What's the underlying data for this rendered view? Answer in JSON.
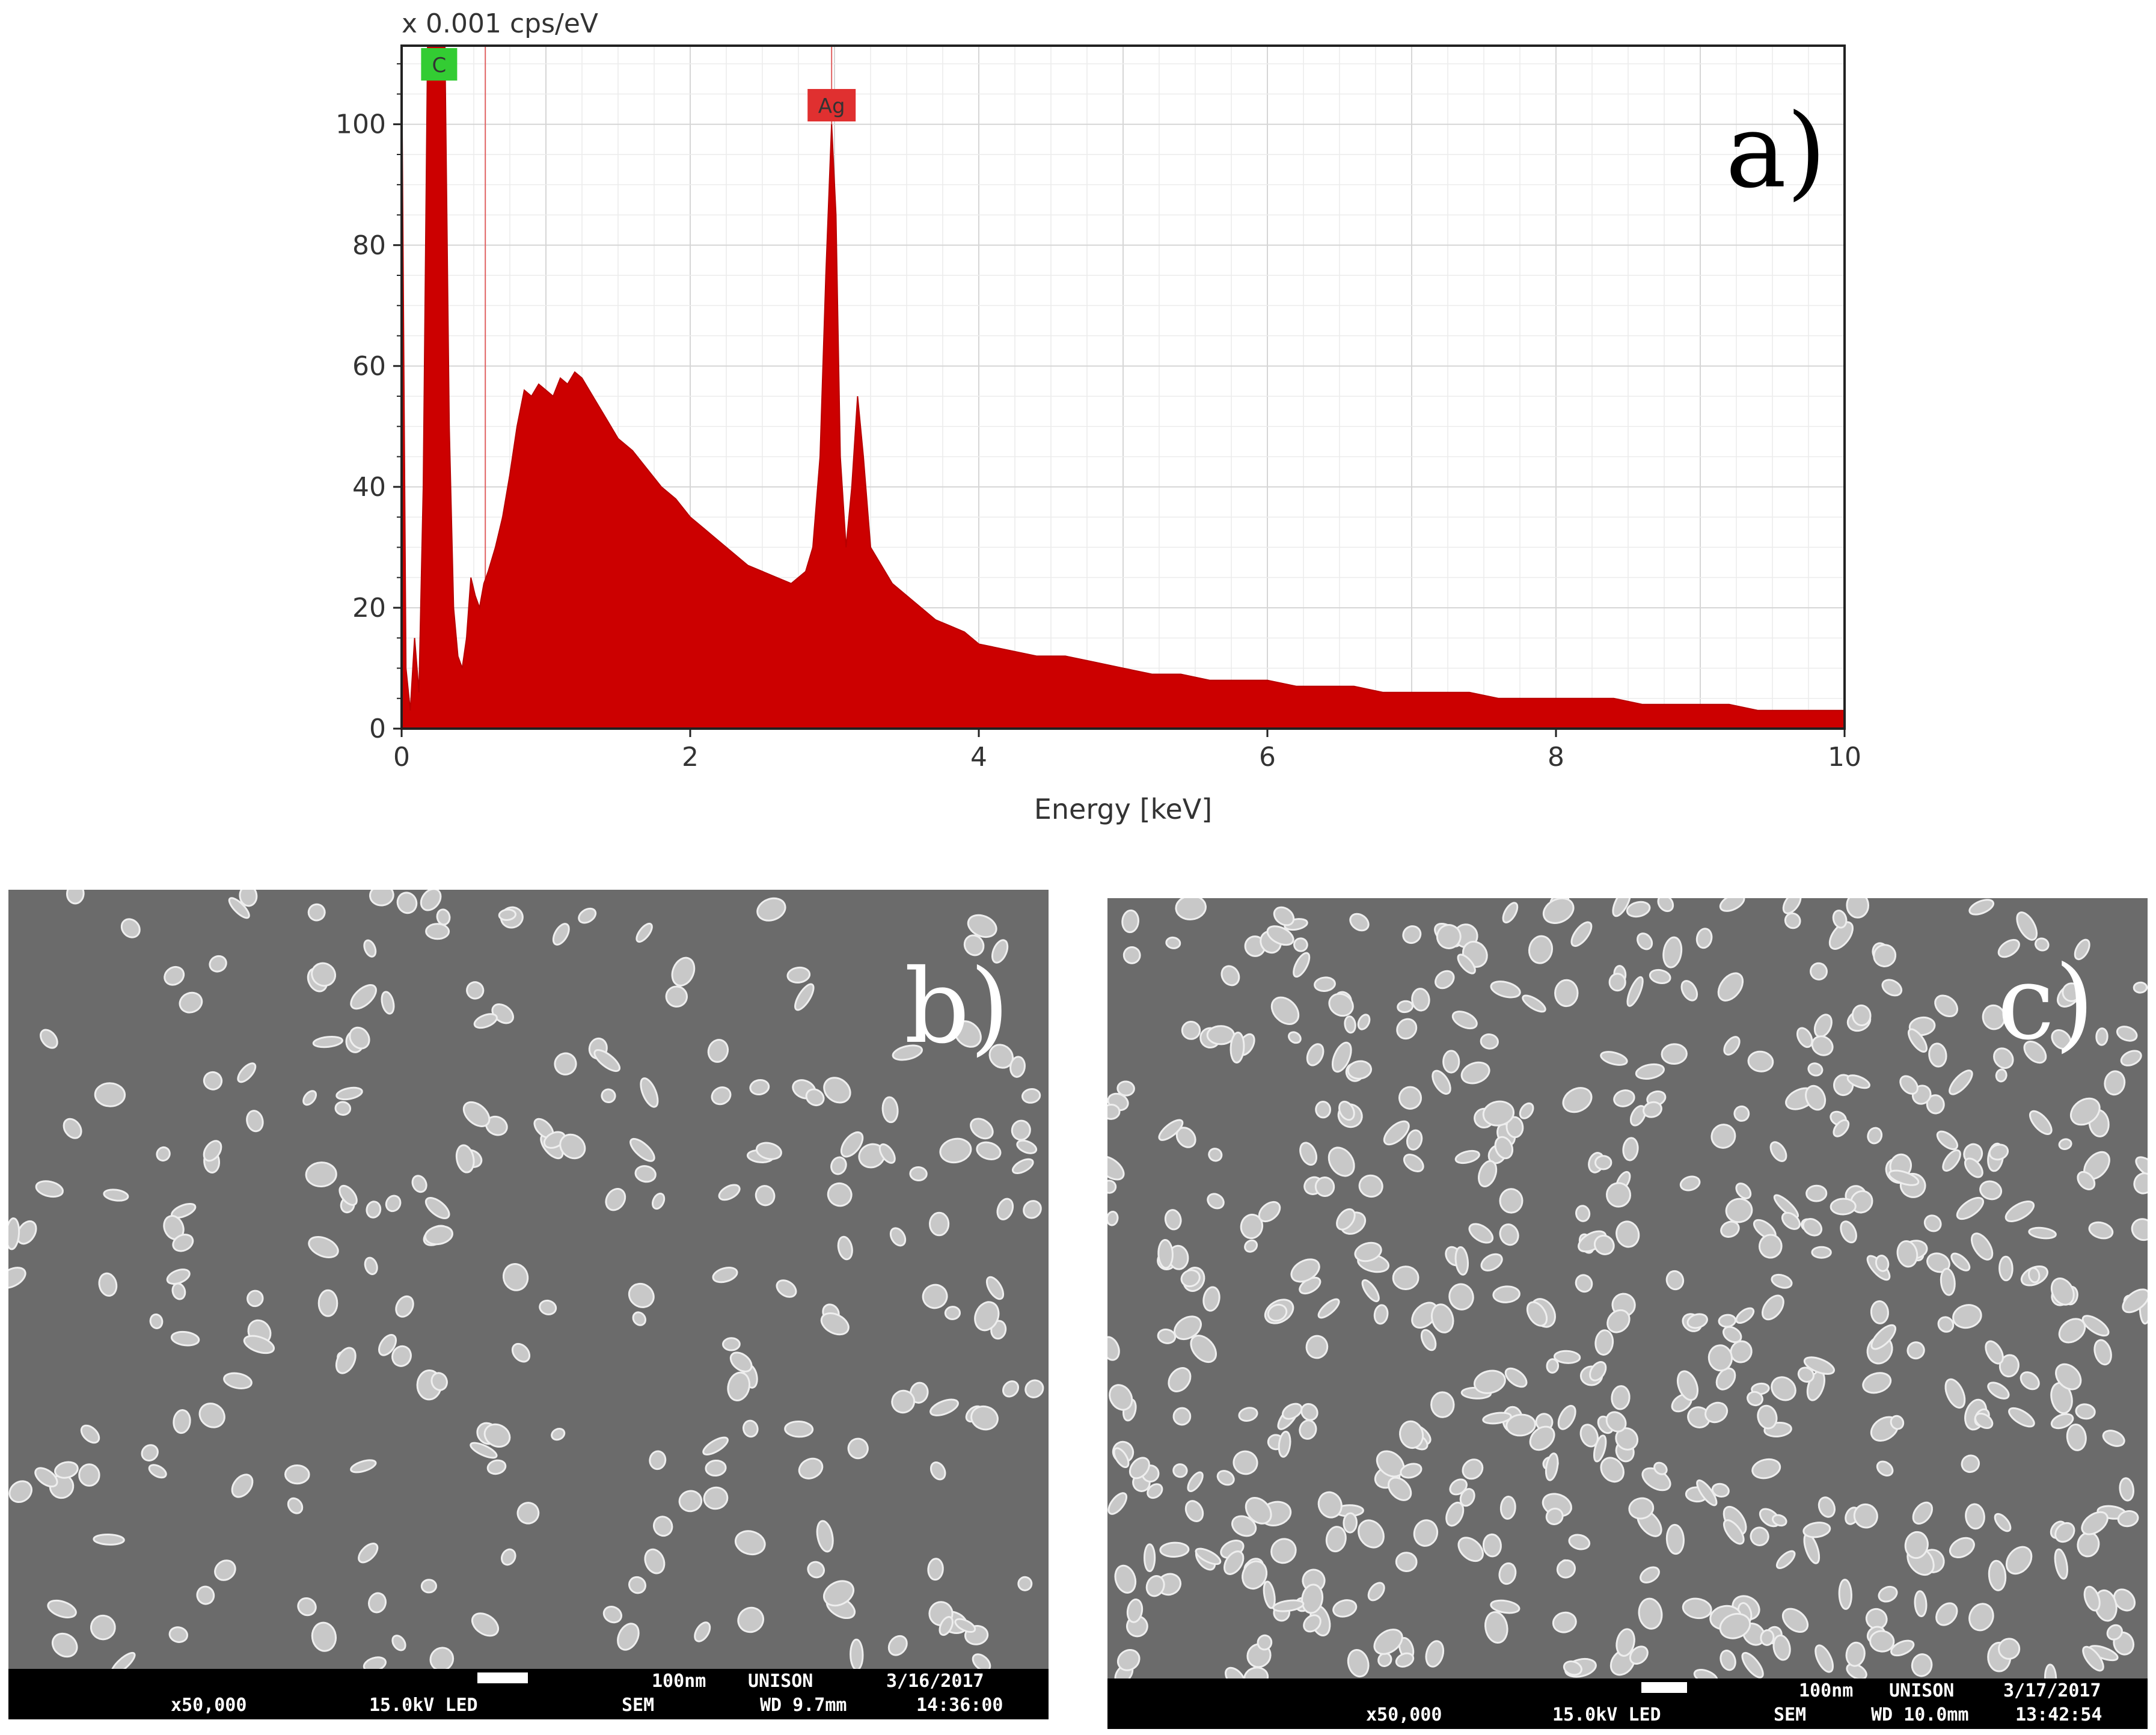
{
  "chart_data": {
    "type": "area",
    "unit_label": "x 0.001 cps/eV",
    "xlabel": "Energy [keV]",
    "ylabel": "",
    "xlim": [
      0,
      10
    ],
    "ylim": [
      0,
      113
    ],
    "x_ticks": [
      "0",
      "2",
      "4",
      "6",
      "8",
      "10"
    ],
    "y_ticks": [
      "0",
      "20",
      "40",
      "60",
      "80",
      "100"
    ],
    "grid": true,
    "fill_color": "#cc0000",
    "series": [
      {
        "x": [
          0.0,
          0.03,
          0.06,
          0.09,
          0.12,
          0.15,
          0.18,
          0.21,
          0.24,
          0.27,
          0.3,
          0.33,
          0.36,
          0.39,
          0.42,
          0.45,
          0.48,
          0.51,
          0.54,
          0.57,
          0.6,
          0.65,
          0.7,
          0.75,
          0.8,
          0.85,
          0.9,
          0.95,
          1.0,
          1.05,
          1.1,
          1.15,
          1.2,
          1.25,
          1.3,
          1.35,
          1.4,
          1.45,
          1.5,
          1.6,
          1.7,
          1.8,
          1.9,
          2.0,
          2.1,
          2.2,
          2.3,
          2.4,
          2.5,
          2.6,
          2.7,
          2.8,
          2.85,
          2.9,
          2.94,
          2.98,
          3.01,
          3.04,
          3.08,
          3.12,
          3.16,
          3.2,
          3.25,
          3.3,
          3.4,
          3.5,
          3.6,
          3.7,
          3.8,
          3.9,
          4.0,
          4.2,
          4.4,
          4.6,
          4.8,
          5.0,
          5.2,
          5.4,
          5.6,
          5.8,
          6.0,
          6.2,
          6.4,
          6.6,
          6.8,
          7.0,
          7.2,
          7.4,
          7.6,
          7.8,
          8.0,
          8.2,
          8.4,
          8.6,
          8.8,
          9.0,
          9.2,
          9.4,
          9.6,
          9.8,
          10.0
        ],
        "y": [
          113,
          10,
          3,
          15,
          6,
          40,
          113,
          113,
          113,
          113,
          113,
          50,
          20,
          12,
          10,
          15,
          25,
          22,
          20,
          24,
          26,
          30,
          35,
          42,
          50,
          56,
          55,
          57,
          56,
          55,
          58,
          57,
          59,
          58,
          56,
          54,
          52,
          50,
          48,
          46,
          43,
          40,
          38,
          35,
          33,
          31,
          29,
          27,
          26,
          25,
          24,
          26,
          30,
          45,
          75,
          100,
          85,
          45,
          30,
          40,
          55,
          45,
          30,
          28,
          24,
          22,
          20,
          18,
          17,
          16,
          14,
          13,
          12,
          12,
          11,
          10,
          9,
          9,
          8,
          8,
          8,
          7,
          7,
          7,
          6,
          6,
          6,
          6,
          5,
          5,
          5,
          5,
          5,
          4,
          4,
          4,
          4,
          3,
          3,
          3,
          3
        ]
      }
    ],
    "peak_labels": [
      {
        "label": "C",
        "x": 0.26,
        "color": "#33cc33"
      },
      {
        "label": "Ag",
        "x": 2.98,
        "color": "#e03030"
      }
    ],
    "annotation": "a)"
  },
  "sem_panels": [
    {
      "letter": "b)",
      "magnification": "x50,000",
      "voltage": "15.0kV LED",
      "mode": "SEM",
      "scale_label": "100nm",
      "brand": "UNISON",
      "working_distance": "WD 9.7mm",
      "date": "3/16/2017",
      "time": "14:36:00"
    },
    {
      "letter": "c)",
      "magnification": "x50,000",
      "voltage": "15.0kV LED",
      "mode": "SEM",
      "scale_label": "100nm",
      "brand": "UNISON",
      "working_distance": "WD 10.0mm",
      "date": "3/17/2017",
      "time": "13:42:54"
    }
  ]
}
